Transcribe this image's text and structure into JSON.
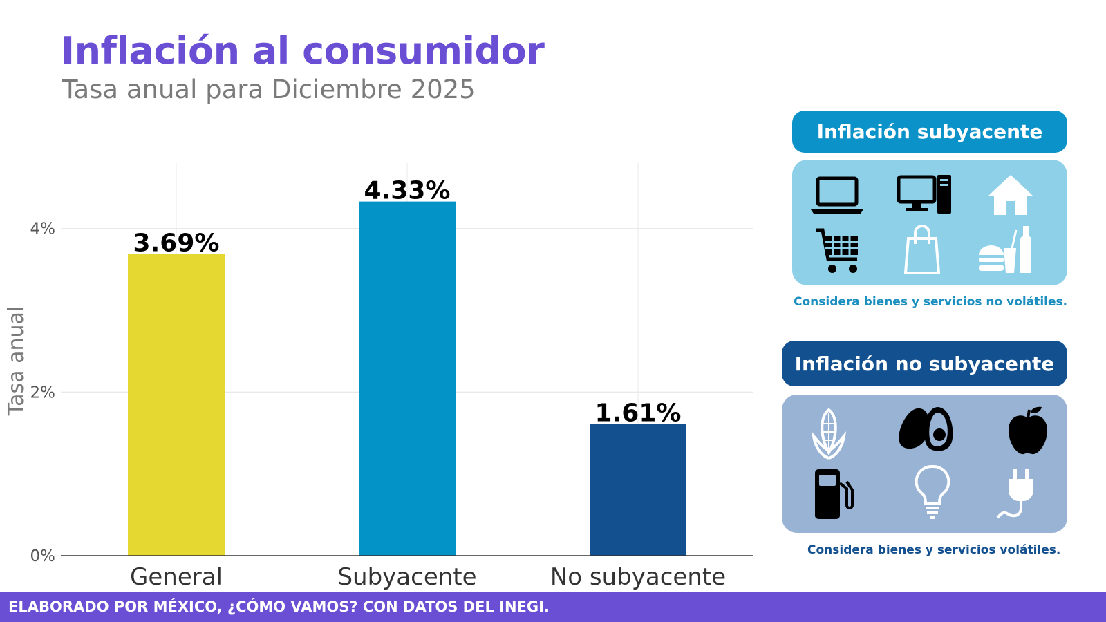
{
  "header": {
    "title": "Inflación al consumidor",
    "subtitle": "Tasa anual para Diciembre 2025"
  },
  "chart_data": {
    "type": "bar",
    "categories": [
      "General",
      "Subyacente",
      "No subyacente"
    ],
    "values": [
      3.69,
      4.33,
      1.61
    ],
    "data_labels": [
      "3.69%",
      "4.33%",
      "1.61%"
    ],
    "colors": [
      "#e5d831",
      "#0493c7",
      "#12508f"
    ],
    "ylabel": "Tasa anual",
    "ylim": [
      0,
      4.8
    ],
    "yticks": [
      0,
      2,
      4
    ],
    "ytick_labels": [
      "0%",
      "2%",
      "4%"
    ],
    "grid": true,
    "xlabel": ""
  },
  "panels": {
    "subyacente": {
      "title": "Inflación subyacente",
      "note": "Considera bienes y servicios no volátiles.",
      "header_color": "#0b93c9",
      "box_color": "#8dd0e8",
      "note_color": "#1a8fc0",
      "icons": [
        "laptop-icon",
        "desktop-computer-icon",
        "house-icon",
        "shopping-cart-icon",
        "shopping-bag-icon",
        "fast-food-icon"
      ]
    },
    "no_subyacente": {
      "title": "Inflación no subyacente",
      "note": "Considera bienes y servicios volátiles.",
      "header_color": "#12508f",
      "box_color": "#98b3d4",
      "note_color": "#12508f",
      "icons": [
        "corn-icon",
        "avocado-icon",
        "apple-icon",
        "fuel-pump-icon",
        "light-bulb-icon",
        "electric-plug-icon"
      ]
    }
  },
  "footer": {
    "text": "ELABORADO POR MÉXICO, ¿CÓMO VAMOS? CON DATOS DEL INEGI."
  }
}
